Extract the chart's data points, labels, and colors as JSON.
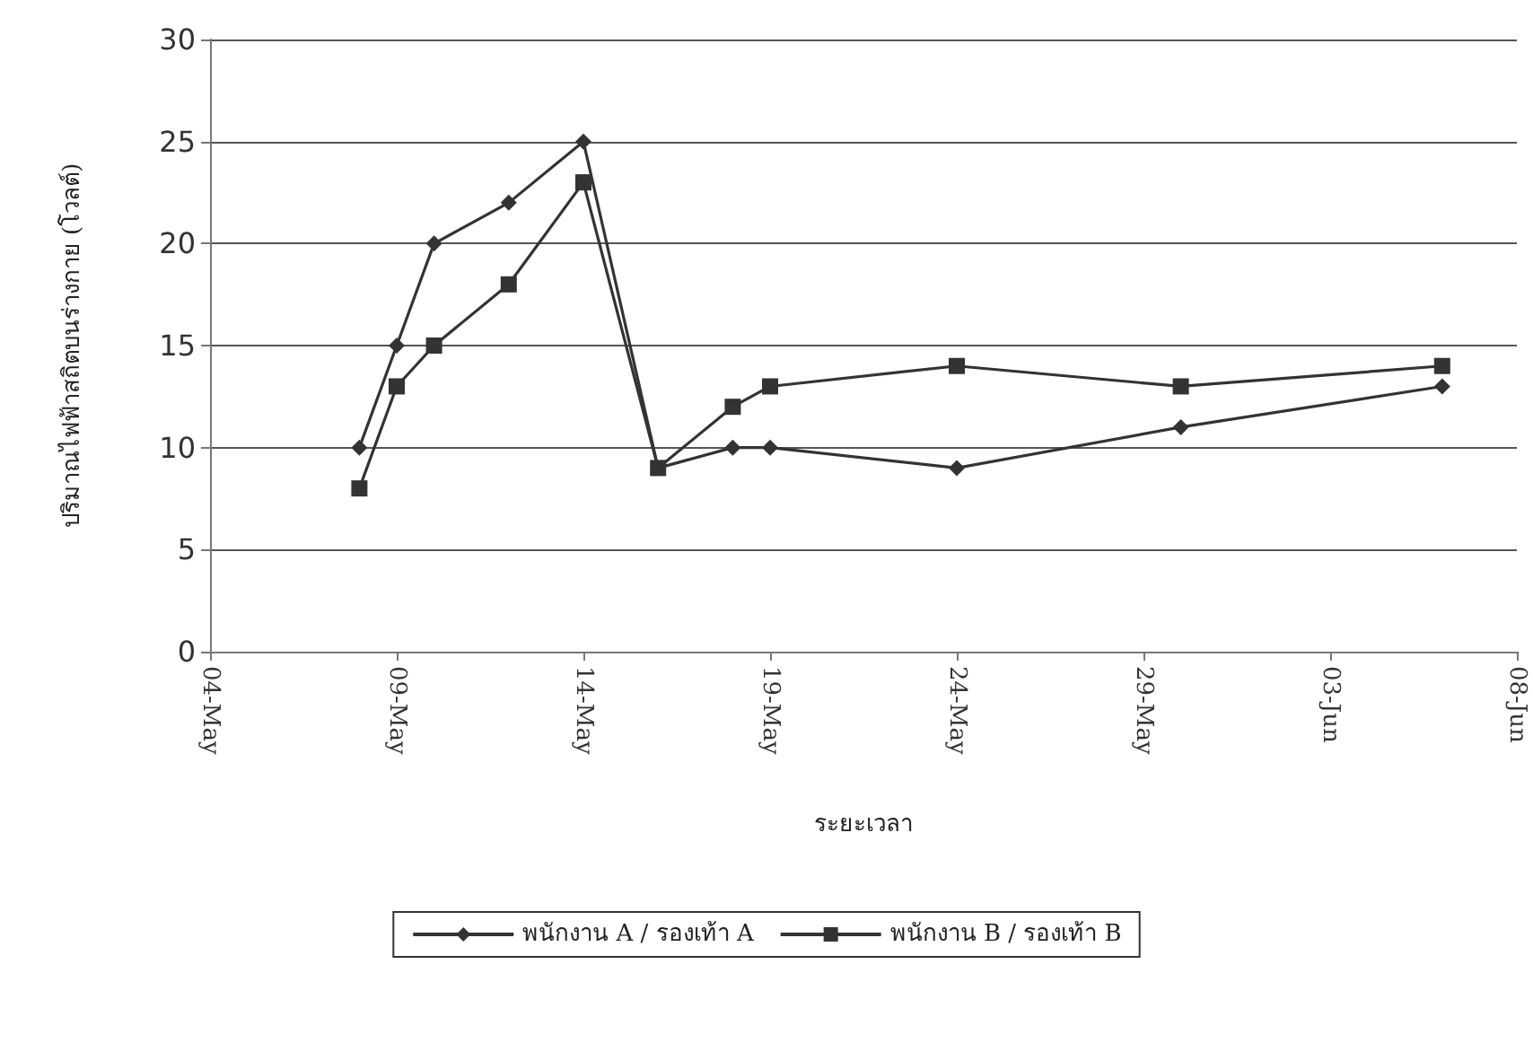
{
  "chart_data": {
    "type": "line",
    "xlabel": "ระยะเวลา",
    "ylabel": "ปริมาณไฟฟ้าสถิตบนร่างกาย (โวลต์)",
    "xlim": [
      "--05-04",
      "--06-08"
    ],
    "xticks": [
      {
        "value": "--05-04",
        "label": "04-May"
      },
      {
        "value": "--05-09",
        "label": "09-May"
      },
      {
        "value": "--05-14",
        "label": "14-May"
      },
      {
        "value": "--05-19",
        "label": "19-May"
      },
      {
        "value": "--05-24",
        "label": "24-May"
      },
      {
        "value": "--05-29",
        "label": "29-May"
      },
      {
        "value": "--06-03",
        "label": "03-Jun"
      },
      {
        "value": "--06-08",
        "label": "08-Jun"
      }
    ],
    "ylim": [
      0,
      30
    ],
    "yticks": [
      0,
      5,
      10,
      15,
      20,
      25,
      30
    ],
    "grid": "y",
    "legend": "bottom",
    "line_style": "solid",
    "x": [
      "--05-08",
      "--05-09",
      "--05-10",
      "--05-12",
      "--05-14",
      "--05-16",
      "--05-18",
      "--05-19",
      "--05-24",
      "--05-30",
      "--06-06"
    ],
    "series": [
      {
        "name": "พนักงาน A / รองเท้า A",
        "color": "#333333",
        "marker": "diamond",
        "values": [
          10,
          15,
          20,
          22,
          25,
          9,
          10,
          10,
          9,
          11,
          13
        ]
      },
      {
        "name": "พนักงาน B / รองเท้า B",
        "color": "#333333",
        "marker": "square",
        "values": [
          8,
          13,
          15,
          18,
          23,
          9,
          12,
          13,
          14,
          13,
          14
        ]
      }
    ]
  }
}
